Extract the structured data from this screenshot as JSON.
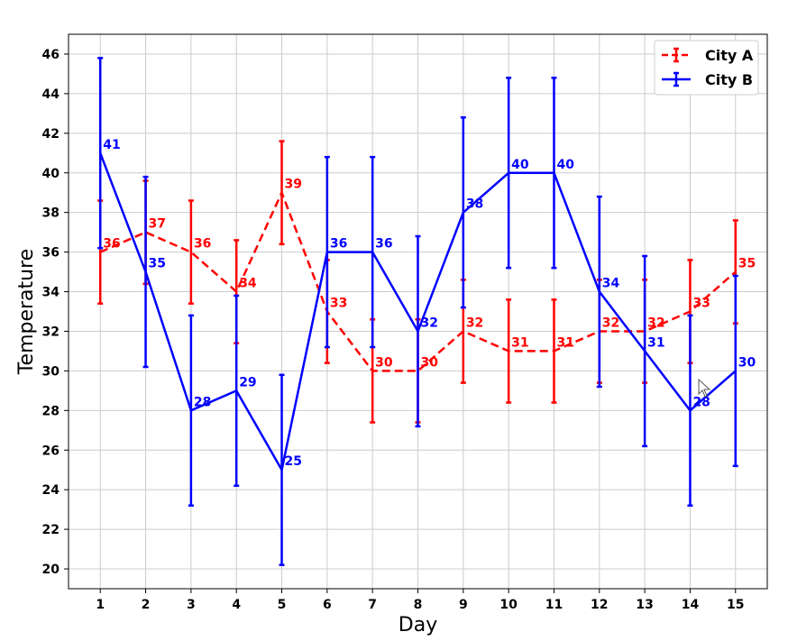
{
  "chart_data": {
    "type": "line",
    "title": "",
    "xlabel": "Day",
    "ylabel": "Temperature",
    "x": [
      1,
      2,
      3,
      4,
      5,
      6,
      7,
      8,
      9,
      10,
      11,
      12,
      13,
      14,
      15
    ],
    "xlim": [
      0.3,
      15.7
    ],
    "ylim": [
      19,
      47
    ],
    "yticks": [
      20,
      22,
      24,
      26,
      28,
      30,
      32,
      34,
      36,
      38,
      40,
      42,
      44,
      46
    ],
    "grid": true,
    "legend_position": "top-right",
    "series": [
      {
        "name": "City A",
        "color": "#ff0000",
        "line_style": "dashed",
        "values": [
          36,
          37,
          36,
          34,
          39,
          33,
          30,
          30,
          32,
          31,
          31,
          32,
          32,
          33,
          35
        ],
        "errors": [
          2.6,
          2.6,
          2.6,
          2.6,
          2.6,
          2.6,
          2.6,
          2.6,
          2.6,
          2.6,
          2.6,
          2.6,
          2.6,
          2.6,
          2.6
        ]
      },
      {
        "name": "City B",
        "color": "#0000ff",
        "line_style": "solid",
        "values": [
          41,
          35,
          28,
          29,
          25,
          36,
          36,
          32,
          38,
          40,
          40,
          34,
          31,
          28,
          30
        ],
        "errors": [
          4.8,
          4.8,
          4.8,
          4.8,
          4.8,
          4.8,
          4.8,
          4.8,
          4.8,
          4.8,
          4.8,
          4.8,
          4.8,
          4.8,
          4.8
        ]
      }
    ]
  }
}
